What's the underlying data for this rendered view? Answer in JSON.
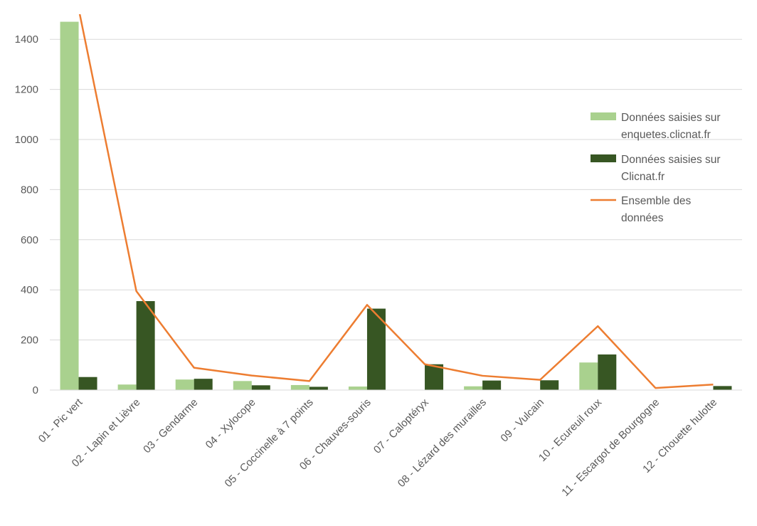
{
  "chart_data": {
    "type": "bar",
    "categories": [
      "01 - Pic vert",
      "02 - Lapin et Lièvre",
      "03 - Gendarme",
      "04 - Xylocope",
      "05 - Coccinelle à 7 points",
      "06 - Chauves-souris",
      "07 - Caloptéryx",
      "08 - Lézard des murailles",
      "09 - Vulcain",
      "10 - Ecureuil roux",
      "11 - Escargot de Bourgogne",
      "12 - Chouette hulotte"
    ],
    "series": [
      {
        "name": "Données saisies sur enquetes.clicnat.fr",
        "type": "bar",
        "color": "#a9d18e",
        "legend_lines": [
          "Données saisies sur",
          "enquetes.clicnat.fr"
        ],
        "values": [
          1470,
          22,
          42,
          36,
          20,
          14,
          0,
          15,
          0,
          110,
          0,
          0
        ]
      },
      {
        "name": "Données saisies sur Clicnat.fr",
        "type": "bar",
        "color": "#375623",
        "legend_lines": [
          "Données saisies sur",
          "Clicnat.fr"
        ],
        "values": [
          52,
          355,
          45,
          19,
          13,
          325,
          103,
          38,
          39,
          142,
          0,
          16
        ]
      },
      {
        "name": "Ensemble des données",
        "type": "line",
        "color": "#ed7d31",
        "legend_lines": [
          "Ensemble des",
          "données"
        ],
        "values": [
          1522,
          395,
          89,
          58,
          36,
          340,
          103,
          57,
          41,
          255,
          8,
          22
        ]
      }
    ],
    "yticks": [
      0,
      200,
      400,
      600,
      800,
      1000,
      1200,
      1400
    ],
    "ylim": [
      0,
      1500
    ],
    "grid": true,
    "legend_position": "right"
  }
}
